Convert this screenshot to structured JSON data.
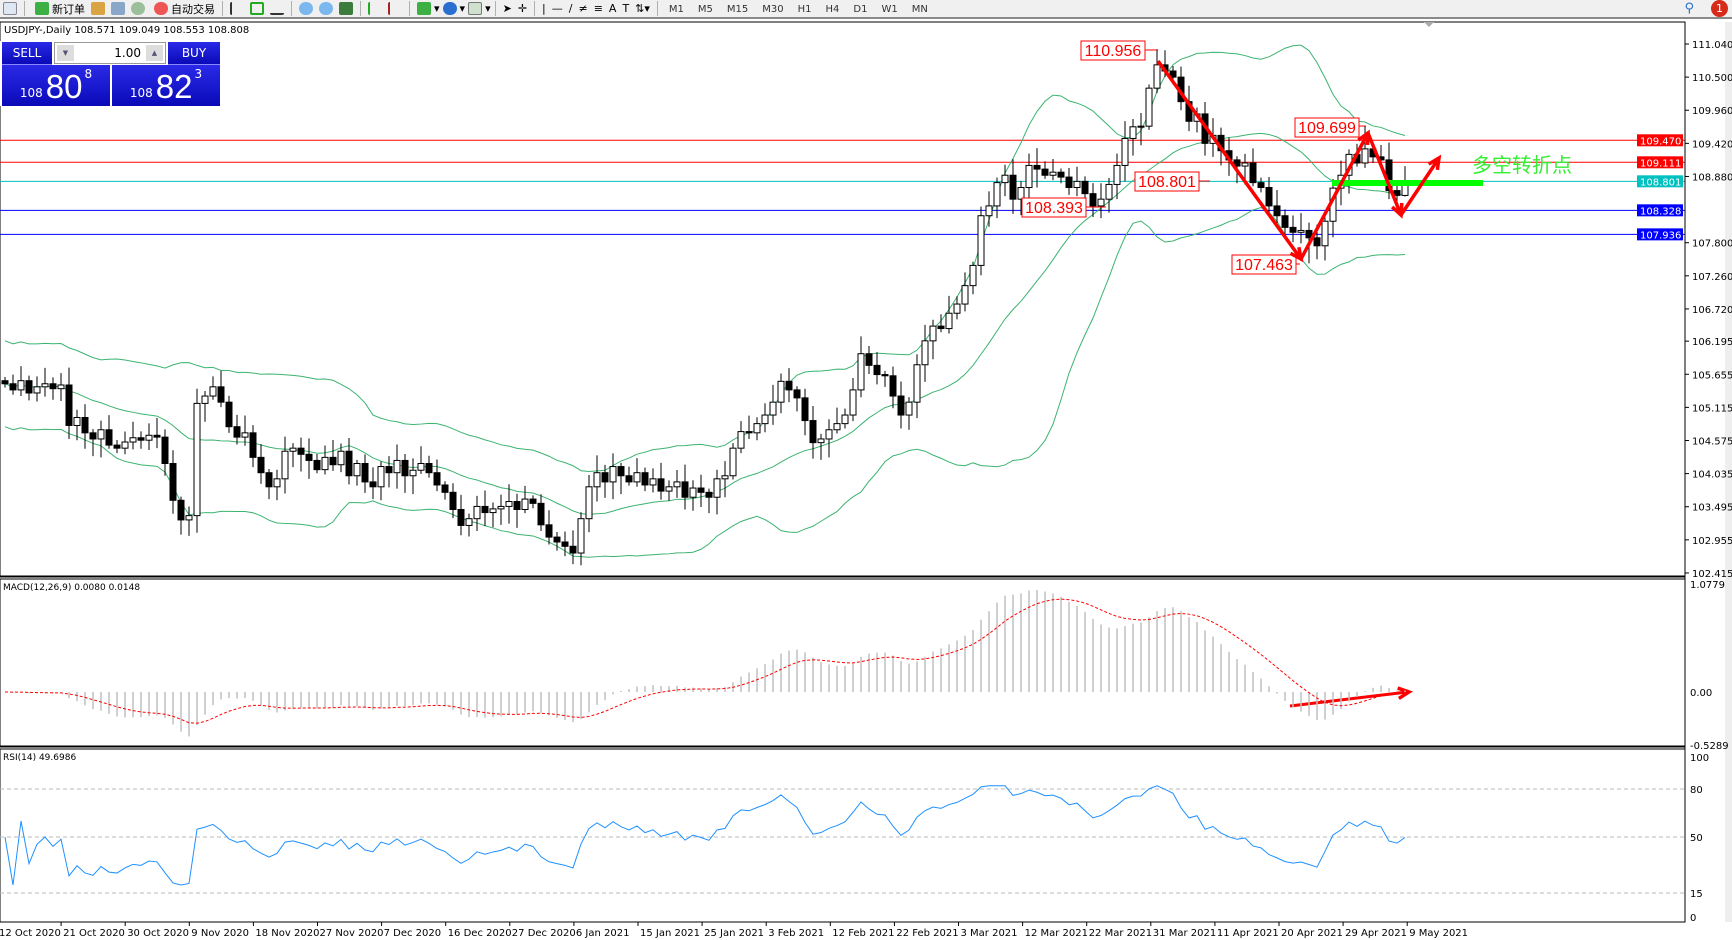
{
  "toolbar": {
    "new_order": "新订单",
    "auto_trading": "自动交易",
    "timeframes": [
      "M1",
      "M5",
      "M15",
      "M30",
      "H1",
      "H4",
      "D1",
      "W1",
      "MN"
    ],
    "notification_count": "1"
  },
  "header": {
    "symbol_info": "USDJPY-,Daily  108.571 109.049 108.553 108.808"
  },
  "trade_panel": {
    "sell_label": "SELL",
    "buy_label": "BUY",
    "lot": "1.00",
    "sell_small": "108",
    "sell_big": "80",
    "sell_pip": "8",
    "buy_small": "108",
    "buy_big": "82",
    "buy_pip": "3"
  },
  "colors": {
    "bull": "#ffffff",
    "bear": "#000000",
    "bands": "#3cb371",
    "macd_hist": "#c0c0c0",
    "macd_signal": "#ff0000",
    "rsi": "#1e90ff",
    "annotation": "#ff0000",
    "pivot_line": "#00ff00"
  },
  "chart_data": {
    "type": "candlestick",
    "symbol": "USDJPY-",
    "timeframe": "Daily",
    "ylim": [
      102.415,
      111.04
    ],
    "y_ticks": [
      "111.040",
      "110.500",
      "109.960",
      "109.420",
      "108.880",
      "107.800",
      "107.260",
      "106.720",
      "106.195",
      "105.655",
      "105.115",
      "104.575",
      "104.035",
      "103.495",
      "102.955",
      "102.415"
    ],
    "x_labels": [
      "12 Oct 2020",
      "21 Oct 2020",
      "30 Oct 2020",
      "9 Nov 2020",
      "18 Nov 2020",
      "27 Nov 2020",
      "7 Dec 2020",
      "16 Dec 2020",
      "27 Dec 2020",
      "6 Jan 2021",
      "15 Jan 2021",
      "25 Jan 2021",
      "3 Feb 2021",
      "12 Feb 2021",
      "22 Feb 2021",
      "3 Mar 2021",
      "12 Mar 2021",
      "22 Mar 2021",
      "31 Mar 2021",
      "11 Apr 2021",
      "20 Apr 2021",
      "29 Apr 2021",
      "9 May 2021"
    ],
    "last_bar": {
      "open": 108.571,
      "high": 109.049,
      "low": 108.553,
      "close": 108.808
    },
    "closes": [
      105.5,
      105.4,
      105.55,
      105.35,
      105.45,
      105.5,
      105.42,
      105.48,
      104.82,
      104.95,
      104.7,
      104.6,
      104.75,
      104.5,
      104.45,
      104.55,
      104.62,
      104.58,
      104.66,
      104.63,
      104.2,
      103.6,
      103.28,
      103.35,
      105.18,
      105.3,
      105.45,
      105.2,
      104.8,
      104.63,
      104.7,
      104.3,
      104.05,
      103.82,
      103.95,
      104.4,
      104.45,
      104.35,
      104.25,
      104.1,
      104.3,
      104.18,
      104.4,
      104.0,
      104.2,
      103.9,
      103.82,
      104.15,
      104.05,
      104.25,
      104.0,
      104.09,
      104.2,
      104.05,
      103.85,
      103.73,
      103.45,
      103.19,
      103.3,
      103.5,
      103.4,
      103.46,
      103.5,
      103.58,
      103.45,
      103.62,
      103.55,
      103.2,
      103.0,
      102.92,
      102.85,
      102.74,
      103.3,
      103.82,
      104.05,
      103.9,
      104.15,
      104.0,
      103.9,
      104.05,
      103.85,
      103.95,
      103.75,
      103.82,
      103.9,
      103.65,
      103.8,
      103.73,
      103.65,
      103.95,
      104.0,
      104.45,
      104.72,
      104.7,
      104.85,
      104.99,
      105.2,
      105.54,
      105.4,
      105.27,
      104.9,
      104.54,
      104.6,
      104.75,
      104.85,
      104.99,
      105.4,
      105.99,
      105.8,
      105.65,
      105.63,
      105.3,
      104.99,
      105.2,
      105.81,
      106.2,
      106.44,
      106.4,
      106.65,
      106.8,
      107.1,
      107.43,
      108.24,
      108.4,
      108.78,
      108.9,
      108.51,
      108.7,
      109.06,
      109.0,
      108.9,
      108.95,
      108.87,
      108.7,
      108.8,
      108.6,
      108.4,
      108.51,
      108.75,
      109.06,
      109.5,
      109.69,
      109.7,
      110.32,
      110.7,
      110.6,
      110.5,
      110.1,
      109.78,
      109.9,
      109.42,
      109.55,
      109.3,
      109.15,
      109.05,
      109.1,
      108.78,
      108.7,
      108.4,
      108.24,
      108.05,
      107.97,
      108.0,
      107.88,
      107.75,
      108.15,
      108.69,
      108.9,
      109.24,
      109.1,
      109.33,
      109.2,
      109.15,
      108.65,
      108.571,
      108.808
    ],
    "extremes": [
      {
        "bar": 144,
        "high": 110.956
      },
      {
        "bar": 163,
        "low": 107.463
      },
      {
        "bar": 170,
        "high": 109.699
      }
    ],
    "horizontal_lines": [
      {
        "price": "109.470",
        "color": "#ff0000"
      },
      {
        "price": "109.111",
        "color": "#ff0000"
      },
      {
        "price": "108.801",
        "color": "#00c0c0"
      },
      {
        "price": "108.328",
        "color": "#0000ff"
      },
      {
        "price": "107.936",
        "color": "#0000ff"
      }
    ],
    "price_labels": [
      "110.956",
      "109.699",
      "108.801",
      "108.393",
      "107.463"
    ],
    "annotation_text": "多空转折点",
    "bollinger": {
      "period": 20,
      "deviation": 2
    },
    "macd": {
      "label": "MACD(12,26,9) 0.0080 0.0148",
      "ylim": [
        -0.5289,
        1.0779
      ],
      "ticks": [
        "1.0779",
        "0.00",
        "-0.5289"
      ]
    },
    "rsi": {
      "label": "RSI(14) 49.6986",
      "ylim": [
        0,
        100
      ],
      "ticks": [
        "100",
        "80",
        "50",
        "15",
        "0"
      ],
      "levels": [
        80,
        50,
        15
      ]
    }
  }
}
